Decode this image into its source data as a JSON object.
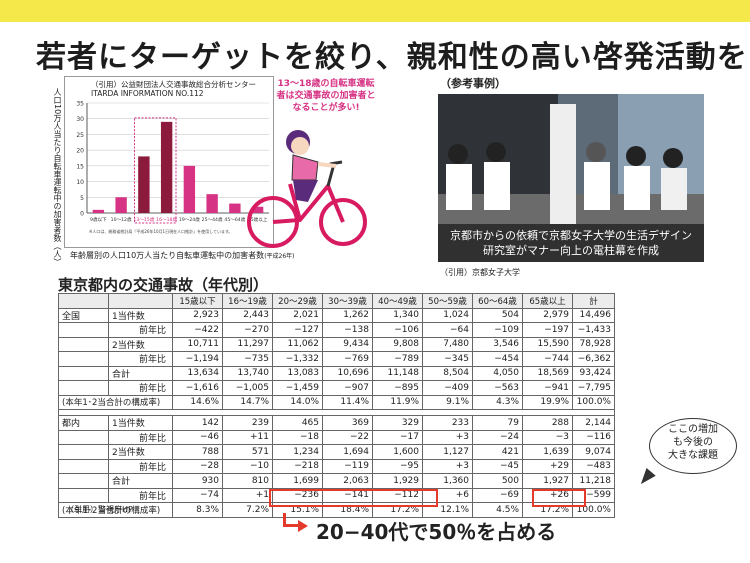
{
  "title": "若者にターゲットを絞り、親和性の高い啓発活動を",
  "chart": {
    "source_line1": "（引用）公益財団法人交通事故総合分析センター",
    "source_line2": "ITARDA INFORMATION NO.112",
    "ylabel": "人口10万人当たり自転車運転中の加害者数（人）",
    "caption": "年齢層別の人口10万人当たり自転車運転中の加害者数",
    "caption_year": "(平成26年)",
    "callout": "13〜18歳の自転車運転者は交通事故の加害者となることが多い!",
    "note": "※人口は、総務省統計局『平成26年10月1日現在人口推計』を使用しています。",
    "highlight_color": "#d63384",
    "bar_color": "#d63384"
  },
  "chart_data": {
    "type": "bar",
    "categories": [
      "9歳以下",
      "10〜12歳",
      "13〜15歳",
      "16〜18歳",
      "19〜24歳",
      "25〜44歳",
      "45〜64歳",
      "65歳以上"
    ],
    "values": [
      1,
      5,
      18,
      29,
      15,
      6,
      3,
      2
    ],
    "highlighted": [
      "13〜15歳",
      "16〜18歳"
    ],
    "ylim": [
      0,
      35
    ],
    "yticks": [
      0,
      5,
      10,
      15,
      20,
      25,
      30,
      35
    ]
  },
  "photo": {
    "label": "（参考事例）",
    "caption_line1": "京都市からの依頼で京都女子大学の生活デザイン",
    "caption_line2": "研究室がマナー向上の電柱幕を作成",
    "credit": "（引用）京都女子大学"
  },
  "table": {
    "title": "東京都内の交通事故（年代別）",
    "headers": [
      "",
      "",
      "15歳以下",
      "16〜19歳",
      "20〜29歳",
      "30〜39歳",
      "40〜49歳",
      "50〜59歳",
      "60〜64歳",
      "65歳以上",
      "計"
    ],
    "rows": [
      {
        "group": "全国",
        "label": "1当件数",
        "values": [
          "2,923",
          "2,443",
          "2,021",
          "1,262",
          "1,340",
          "1,024",
          "504",
          "2,979",
          "14,496"
        ]
      },
      {
        "group": "",
        "label": "前年比",
        "sub": true,
        "values": [
          "−422",
          "−270",
          "−127",
          "−138",
          "−106",
          "−64",
          "−109",
          "−197",
          "−1,433"
        ]
      },
      {
        "group": "",
        "label": "2当件数",
        "values": [
          "10,711",
          "11,297",
          "11,062",
          "9,434",
          "9,808",
          "7,480",
          "3,546",
          "15,590",
          "78,928"
        ]
      },
      {
        "group": "",
        "label": "前年比",
        "sub": true,
        "values": [
          "−1,194",
          "−735",
          "−1,332",
          "−769",
          "−789",
          "−345",
          "−454",
          "−744",
          "−6,362"
        ]
      },
      {
        "group": "",
        "label": "合計",
        "values": [
          "13,634",
          "13,740",
          "13,083",
          "10,696",
          "11,148",
          "8,504",
          "4,050",
          "18,569",
          "93,424"
        ]
      },
      {
        "group": "",
        "label": "前年比",
        "sub": true,
        "values": [
          "−1,616",
          "−1,005",
          "−1,459",
          "−907",
          "−895",
          "−409",
          "−563",
          "−941",
          "−7,795"
        ]
      },
      {
        "group": "(本年1･2当合計の構成率)",
        "label": "",
        "span": true,
        "values": [
          "14.6%",
          "14.7%",
          "14.0%",
          "11.4%",
          "11.9%",
          "9.1%",
          "4.3%",
          "19.9%",
          "100.0%"
        ]
      },
      {
        "group": "都内",
        "label": "1当件数",
        "values": [
          "142",
          "239",
          "465",
          "369",
          "329",
          "233",
          "79",
          "288",
          "2,144"
        ]
      },
      {
        "group": "",
        "label": "前年比",
        "sub": true,
        "values": [
          "−46",
          "+11",
          "−18",
          "−22",
          "−17",
          "+3",
          "−24",
          "−3",
          "−116"
        ]
      },
      {
        "group": "",
        "label": "2当件数",
        "values": [
          "788",
          "571",
          "1,234",
          "1,694",
          "1,600",
          "1,127",
          "421",
          "1,639",
          "9,074"
        ]
      },
      {
        "group": "",
        "label": "前年比",
        "sub": true,
        "values": [
          "−28",
          "−10",
          "−218",
          "−119",
          "−95",
          "+3",
          "−45",
          "+29",
          "−483"
        ]
      },
      {
        "group": "",
        "label": "合計",
        "values": [
          "930",
          "810",
          "1,699",
          "2,063",
          "1,929",
          "1,360",
          "500",
          "1,927",
          "11,218"
        ]
      },
      {
        "group": "",
        "label": "前年比",
        "sub": true,
        "values": [
          "−74",
          "+1",
          "−236",
          "−141",
          "−112",
          "+6",
          "−69",
          "+26",
          "−599"
        ]
      },
      {
        "group": "(本年1･2当合計の構成率)",
        "label": "",
        "span": true,
        "values": [
          "8.3%",
          "7.2%",
          "15.1%",
          "18.4%",
          "17.2%",
          "12.1%",
          "4.5%",
          "17.2%",
          "100.0%"
        ]
      }
    ],
    "credit": "（引用）警視庁HP"
  },
  "bubble": {
    "line1": "ここの増加",
    "line2": "も今後の",
    "line3": "大きな課題"
  },
  "conclusion": "20−40代で50％を占める",
  "accent_red": "#e43a2b",
  "topbar_color": "#f5e84a"
}
